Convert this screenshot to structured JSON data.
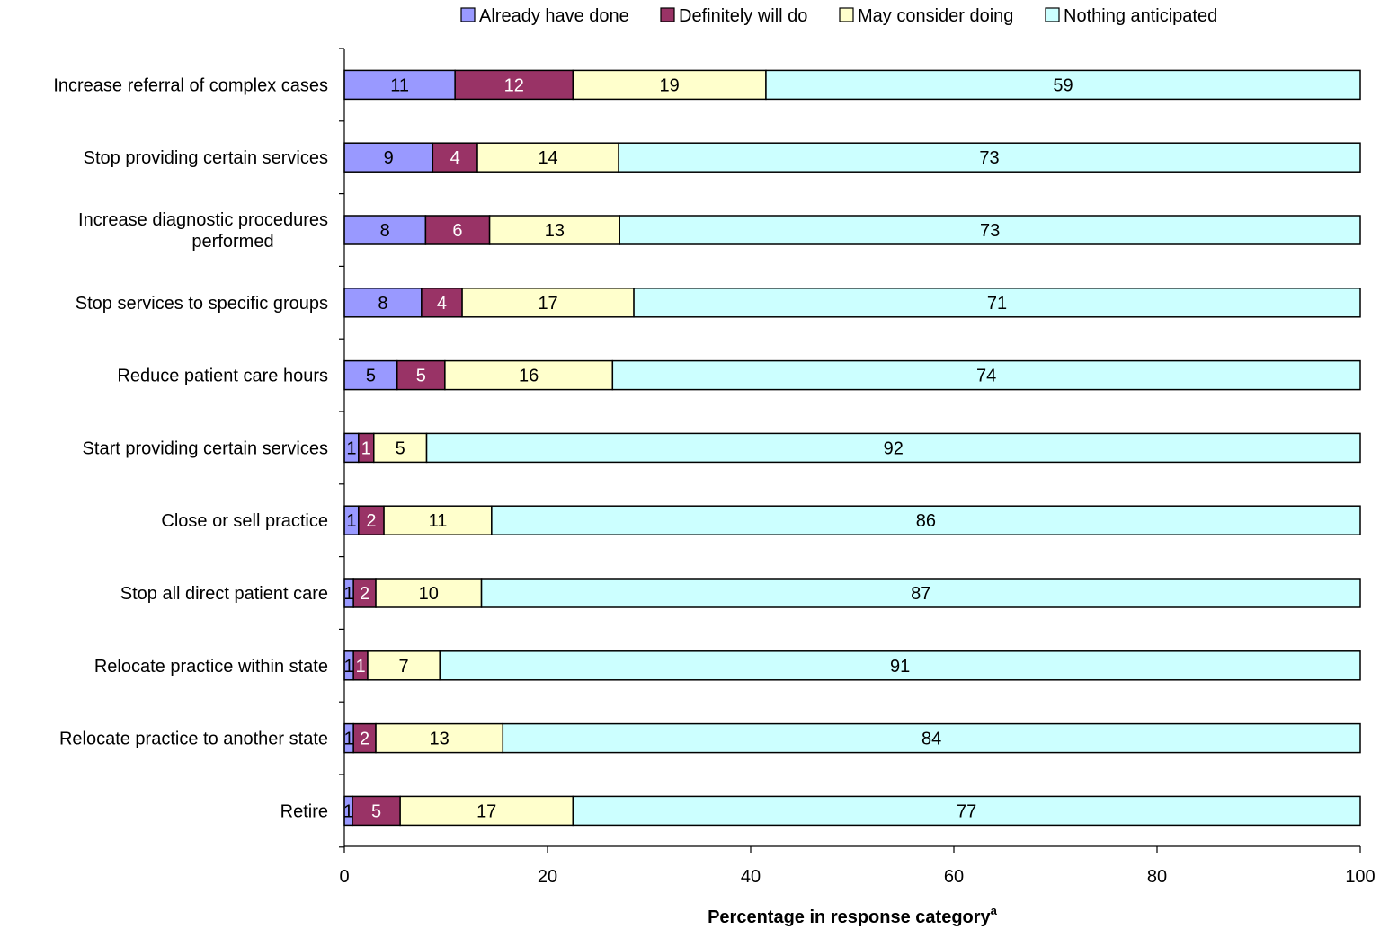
{
  "chart_data": {
    "type": "bar",
    "orientation": "horizontal",
    "stacked": true,
    "title": "",
    "xlabel": "Percentage in response category",
    "xlabel_superscript": "a",
    "ylabel": "",
    "xlim": [
      0,
      100
    ],
    "xticks": [
      "0",
      "20",
      "40",
      "60",
      "80",
      "100"
    ],
    "grid": false,
    "legend_position": "top",
    "categories": [
      "Increase referral of complex cases",
      "Stop providing certain services",
      "Increase diagnostic procedures performed",
      "Stop services to specific groups",
      "Reduce patient care hours",
      "Start providing certain services",
      "Close or sell practice",
      "Stop all direct patient care",
      "Relocate practice within state",
      "Relocate practice to another state",
      "Retire"
    ],
    "category_lines": [
      [
        "Increase referral of complex cases"
      ],
      [
        "Stop providing certain services"
      ],
      [
        "Increase diagnostic procedures",
        "performed"
      ],
      [
        "Stop services to specific groups"
      ],
      [
        "Reduce patient care hours"
      ],
      [
        "Start providing certain services"
      ],
      [
        "Close or sell practice"
      ],
      [
        "Stop all direct patient care"
      ],
      [
        "Relocate practice within state"
      ],
      [
        "Relocate practice to another state"
      ],
      [
        "Retire"
      ]
    ],
    "series": [
      {
        "name": "Already have done",
        "color": "#9999ff",
        "label_color": "#000000",
        "values": [
          11,
          9,
          8,
          8,
          5,
          1,
          1,
          1,
          1,
          1,
          1
        ],
        "plot_values": [
          10.9,
          8.7,
          8.0,
          7.6,
          5.2,
          1.4,
          1.4,
          0.9,
          0.9,
          0.9,
          0.8
        ]
      },
      {
        "name": "Definitely will do",
        "color": "#993366",
        "label_color": "#ffffff",
        "values": [
          12,
          4,
          6,
          4,
          5,
          1,
          2,
          2,
          1,
          2,
          5
        ],
        "plot_values": [
          11.6,
          4.4,
          6.3,
          4.0,
          4.7,
          1.5,
          2.5,
          2.2,
          1.4,
          2.2,
          4.7
        ]
      },
      {
        "name": "May consider doing",
        "color": "#ffffcc",
        "label_color": "#000000",
        "values": [
          19,
          14,
          13,
          17,
          16,
          5,
          11,
          10,
          7,
          13,
          17
        ],
        "plot_values": [
          19.0,
          13.9,
          12.8,
          16.9,
          16.5,
          5.2,
          10.6,
          10.4,
          7.1,
          12.5,
          17.0
        ]
      },
      {
        "name": "Nothing anticipated",
        "color": "#ccffff",
        "label_color": "#000000",
        "values": [
          59,
          73,
          73,
          71,
          74,
          92,
          86,
          87,
          91,
          84,
          77
        ],
        "plot_values": [
          58.5,
          73.0,
          72.9,
          71.5,
          73.6,
          91.9,
          85.5,
          86.5,
          90.6,
          84.4,
          77.5
        ]
      }
    ]
  }
}
